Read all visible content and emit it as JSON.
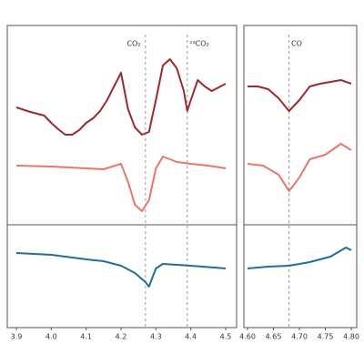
{
  "chart_data": [
    {
      "type": "line",
      "xlim": [
        3.9,
        4.5
      ],
      "xticks": [
        3.9,
        {
          "value": 4,
          "label": "4.0"
        },
        4.1,
        4.2,
        4.3,
        4.4,
        4.5
      ],
      "ylim": [
        0,
        332
      ],
      "vlines": [
        4.27,
        4.39
      ],
      "annotations": [
        "CO₂",
        "¹³CO₂"
      ],
      "series": [
        {
          "color": "#9b2a2f",
          "x": [
            3.9,
            3.94,
            3.98,
            4.0,
            4.02,
            4.04,
            4.06,
            4.08,
            4.1,
            4.12,
            4.14,
            4.16,
            4.18,
            4.2,
            4.22,
            4.24,
            4.26,
            4.28,
            4.3,
            4.32,
            4.34,
            4.36,
            4.38,
            4.39,
            4.4,
            4.42,
            4.44,
            4.46,
            4.48,
            4.5
          ],
          "values": [
            242,
            237,
            233,
            225,
            218,
            212,
            212,
            217,
            225,
            230,
            238,
            250,
            265,
            280,
            240,
            220,
            212,
            215,
            250,
            288,
            295,
            285,
            260,
            238,
            250,
            272,
            265,
            260,
            264,
            268
          ]
        },
        {
          "color": "#e8766c",
          "x": [
            3.9,
            4.0,
            4.1,
            4.15,
            4.2,
            4.22,
            4.24,
            4.26,
            4.28,
            4.3,
            4.32,
            4.36,
            4.4,
            4.45,
            4.5
          ],
          "values": [
            178,
            177,
            175,
            174,
            180,
            160,
            135,
            128,
            140,
            175,
            188,
            182,
            180,
            178,
            175
          ]
        },
        {
          "color": "#1f6e9c",
          "x": [
            3.9,
            4.0,
            4.1,
            4.15,
            4.2,
            4.24,
            4.27,
            4.28,
            4.3,
            4.32,
            4.4,
            4.5
          ],
          "values": [
            82,
            80,
            75,
            73,
            68,
            60,
            50,
            45,
            65,
            70,
            68,
            65
          ]
        }
      ]
    },
    {
      "type": "line",
      "xlim": [
        4.6,
        4.8
      ],
      "xticks": [
        {
          "value": 4.6,
          "label": "4.60"
        },
        4.65,
        {
          "value": 4.7,
          "label": "4.70"
        },
        4.75,
        {
          "value": 4.8,
          "label": "4.80"
        }
      ],
      "ylim": [
        0,
        332
      ],
      "vlines": [
        4.68
      ],
      "annotations": [
        "CO"
      ],
      "series": [
        {
          "color": "#9b2a2f",
          "x": [
            4.6,
            4.62,
            4.64,
            4.66,
            4.68,
            4.7,
            4.72,
            4.74,
            4.76,
            4.78,
            4.8
          ],
          "values": [
            265,
            265,
            262,
            252,
            238,
            250,
            265,
            268,
            270,
            272,
            268
          ]
        },
        {
          "color": "#e8766c",
          "x": [
            4.6,
            4.63,
            4.66,
            4.68,
            4.7,
            4.72,
            4.75,
            4.78,
            4.8
          ],
          "values": [
            180,
            178,
            168,
            150,
            165,
            185,
            190,
            202,
            195
          ]
        },
        {
          "color": "#1f6e9c",
          "x": [
            4.6,
            4.64,
            4.68,
            4.72,
            4.76,
            4.79,
            4.8
          ],
          "values": [
            65,
            67,
            68,
            72,
            78,
            88,
            85
          ]
        }
      ]
    }
  ]
}
